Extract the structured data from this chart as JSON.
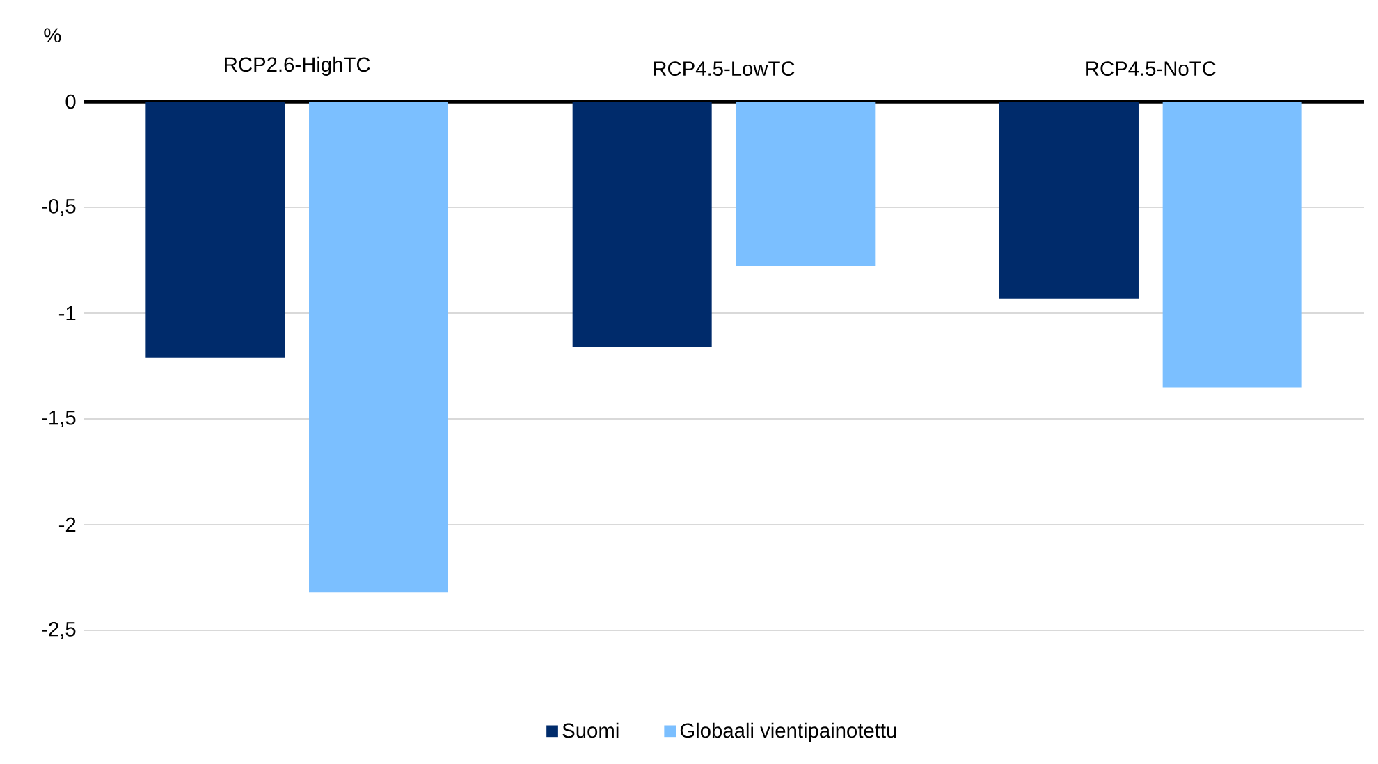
{
  "chart_data": {
    "type": "bar",
    "ylabel": "%",
    "categories": [
      "RCP2.6-HighTC",
      "RCP4.5-LowTC",
      "RCP4.5-NoTC"
    ],
    "series": [
      {
        "name": "Suomi",
        "color": "#002b6b",
        "values": [
          -1.21,
          -1.16,
          -0.93
        ]
      },
      {
        "name": "Globaali vientipainotettu",
        "color": "#7bbfff",
        "values": [
          -2.32,
          -0.78,
          -1.35
        ]
      }
    ],
    "ylim": [
      -2.5,
      0
    ],
    "yticks": [
      0,
      {
        "value": -0.5,
        "label": "-0,5"
      },
      -1,
      {
        "value": -1.5,
        "label": "-1,5"
      },
      -2,
      {
        "value": -2.5,
        "label": "-2,5"
      }
    ],
    "grid": "y",
    "legend": "bottom"
  }
}
